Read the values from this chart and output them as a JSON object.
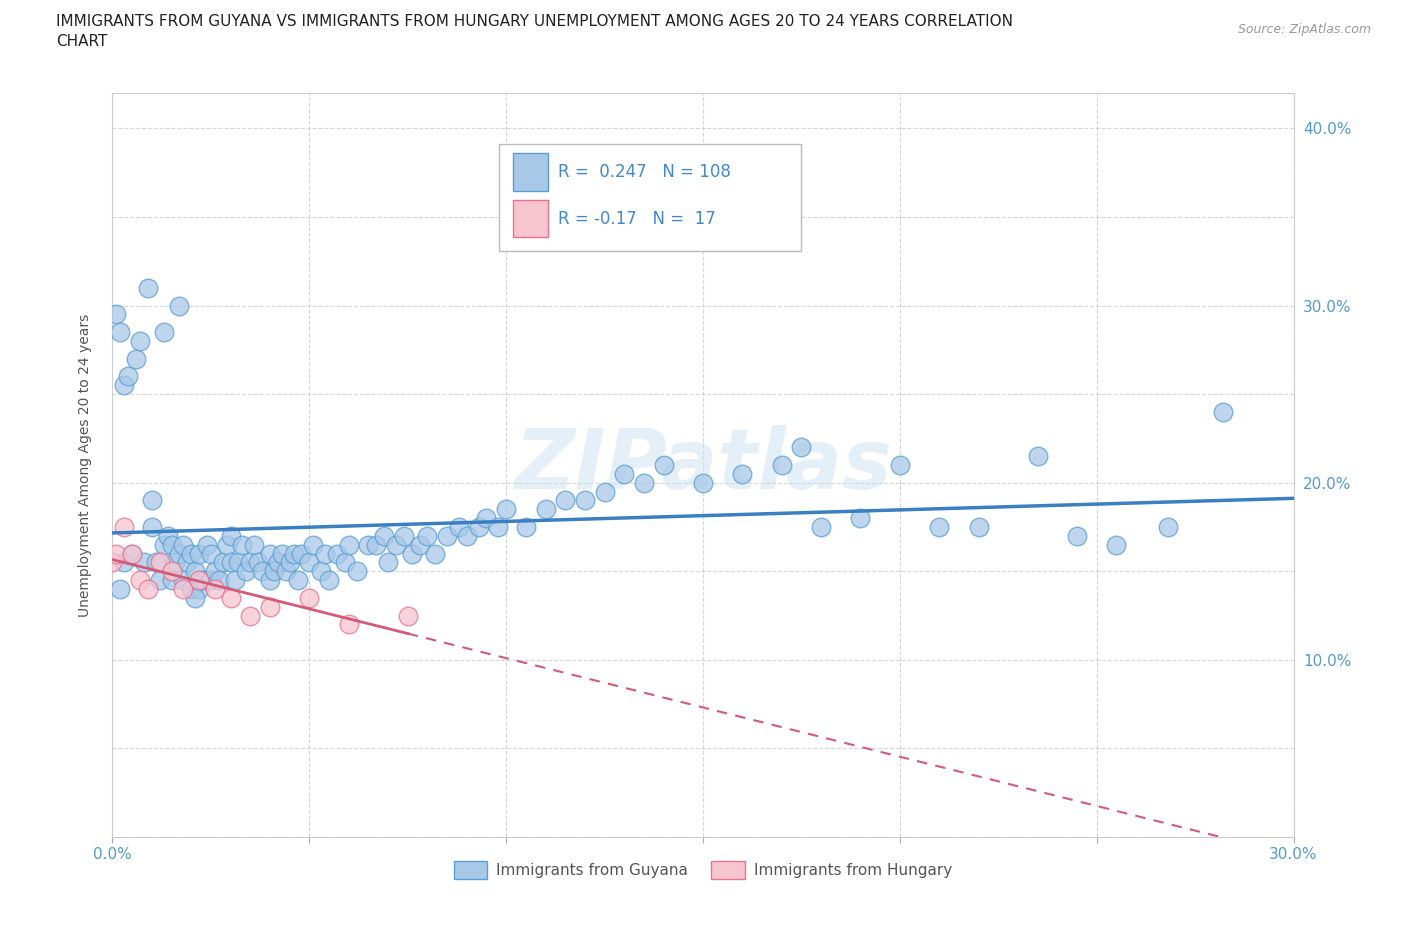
{
  "title_line1": "IMMIGRANTS FROM GUYANA VS IMMIGRANTS FROM HUNGARY UNEMPLOYMENT AMONG AGES 20 TO 24 YEARS CORRELATION",
  "title_line2": "CHART",
  "source": "Source: ZipAtlas.com",
  "ylabel_label": "Unemployment Among Ages 20 to 24 years",
  "xlim": [
    0.0,
    0.3
  ],
  "ylim": [
    0.0,
    0.42
  ],
  "xtick_vals": [
    0.0,
    0.05,
    0.1,
    0.15,
    0.2,
    0.25,
    0.3
  ],
  "xticklabels": [
    "0.0%",
    "",
    "",
    "",
    "",
    "",
    "30.0%"
  ],
  "ytick_vals": [
    0.0,
    0.05,
    0.1,
    0.15,
    0.2,
    0.25,
    0.3,
    0.35,
    0.4
  ],
  "yticklabels": [
    "",
    "",
    "10.0%",
    "",
    "20.0%",
    "",
    "30.0%",
    "",
    "40.0%"
  ],
  "guyana_color_fill": "#a8c8e8",
  "guyana_color_edge": "#5a9fd4",
  "hungary_color_fill": "#f7c5d0",
  "hungary_color_edge": "#e87090",
  "guyana_line_color": "#3a7fc1",
  "hungary_line_color": "#d45a78",
  "guyana_R": 0.247,
  "guyana_N": 108,
  "hungary_R": -0.17,
  "hungary_N": 17,
  "watermark": "ZIPatlas",
  "legend_guyana_label": "Immigrants from Guyana",
  "legend_hungary_label": "Immigrants from Hungary",
  "guyana_x": [
    0.002,
    0.003,
    0.005,
    0.008,
    0.01,
    0.01,
    0.011,
    0.012,
    0.013,
    0.014,
    0.015,
    0.015,
    0.016,
    0.017,
    0.018,
    0.018,
    0.019,
    0.02,
    0.02,
    0.021,
    0.022,
    0.022,
    0.023,
    0.024,
    0.025,
    0.025,
    0.026,
    0.027,
    0.028,
    0.029,
    0.03,
    0.03,
    0.031,
    0.032,
    0.033,
    0.034,
    0.035,
    0.036,
    0.037,
    0.038,
    0.04,
    0.04,
    0.041,
    0.042,
    0.043,
    0.044,
    0.045,
    0.046,
    0.047,
    0.048,
    0.05,
    0.051,
    0.053,
    0.054,
    0.055,
    0.057,
    0.059,
    0.06,
    0.062,
    0.065,
    0.067,
    0.069,
    0.07,
    0.072,
    0.074,
    0.076,
    0.078,
    0.08,
    0.082,
    0.085,
    0.088,
    0.09,
    0.093,
    0.095,
    0.098,
    0.1,
    0.105,
    0.11,
    0.115,
    0.12,
    0.125,
    0.13,
    0.135,
    0.14,
    0.15,
    0.16,
    0.17,
    0.175,
    0.18,
    0.19,
    0.2,
    0.21,
    0.22,
    0.235,
    0.245,
    0.255,
    0.268,
    0.282,
    0.001,
    0.002,
    0.003,
    0.004,
    0.006,
    0.007,
    0.009,
    0.013,
    0.017,
    0.021
  ],
  "guyana_y": [
    0.14,
    0.155,
    0.16,
    0.155,
    0.175,
    0.19,
    0.155,
    0.145,
    0.165,
    0.17,
    0.145,
    0.165,
    0.155,
    0.16,
    0.145,
    0.165,
    0.155,
    0.14,
    0.16,
    0.15,
    0.14,
    0.16,
    0.145,
    0.165,
    0.145,
    0.16,
    0.15,
    0.145,
    0.155,
    0.165,
    0.155,
    0.17,
    0.145,
    0.155,
    0.165,
    0.15,
    0.155,
    0.165,
    0.155,
    0.15,
    0.145,
    0.16,
    0.15,
    0.155,
    0.16,
    0.15,
    0.155,
    0.16,
    0.145,
    0.16,
    0.155,
    0.165,
    0.15,
    0.16,
    0.145,
    0.16,
    0.155,
    0.165,
    0.15,
    0.165,
    0.165,
    0.17,
    0.155,
    0.165,
    0.17,
    0.16,
    0.165,
    0.17,
    0.16,
    0.17,
    0.175,
    0.17,
    0.175,
    0.18,
    0.175,
    0.185,
    0.175,
    0.185,
    0.19,
    0.19,
    0.195,
    0.205,
    0.2,
    0.21,
    0.2,
    0.205,
    0.21,
    0.22,
    0.175,
    0.18,
    0.21,
    0.175,
    0.175,
    0.215,
    0.17,
    0.165,
    0.175,
    0.24,
    0.295,
    0.285,
    0.255,
    0.26,
    0.27,
    0.28,
    0.31,
    0.285,
    0.3,
    0.135
  ],
  "hungary_x": [
    0.0,
    0.001,
    0.003,
    0.005,
    0.007,
    0.009,
    0.012,
    0.015,
    0.018,
    0.022,
    0.026,
    0.03,
    0.035,
    0.04,
    0.05,
    0.06,
    0.075
  ],
  "hungary_y": [
    0.155,
    0.16,
    0.175,
    0.16,
    0.145,
    0.14,
    0.155,
    0.15,
    0.14,
    0.145,
    0.14,
    0.135,
    0.125,
    0.13,
    0.135,
    0.12,
    0.125
  ]
}
